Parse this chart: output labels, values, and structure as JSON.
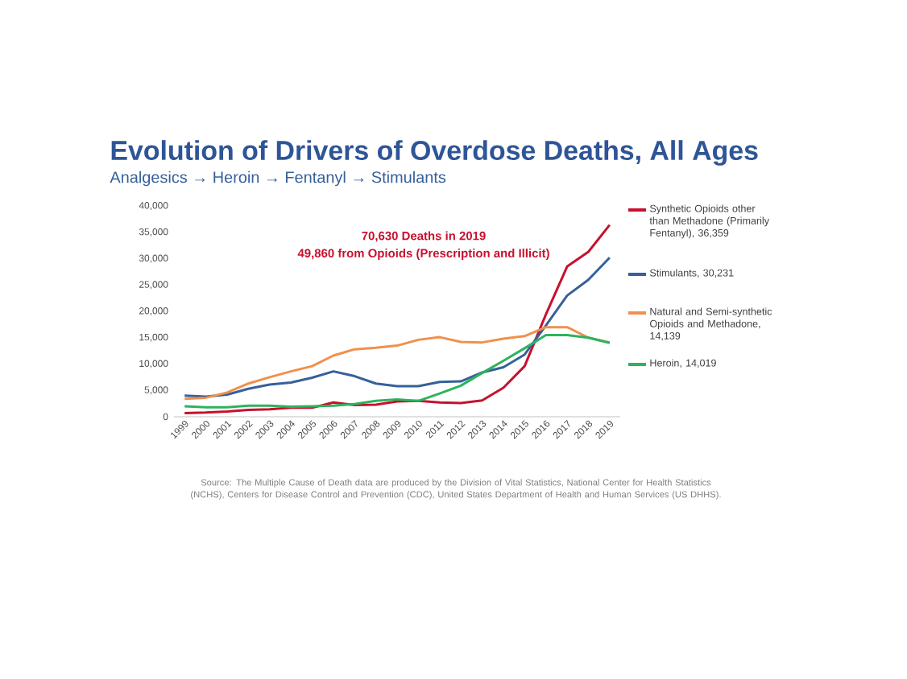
{
  "chart_data": {
    "type": "line",
    "title": "Evolution of Drivers of Overdose Deaths, All Ages",
    "subtitle": "Analgesics → Heroin → Fentanyl → Stimulants",
    "categories": [
      "1999",
      "2000",
      "2001",
      "2002",
      "2003",
      "2004",
      "2005",
      "2006",
      "2007",
      "2008",
      "2009",
      "2010",
      "2011",
      "2012",
      "2013",
      "2014",
      "2015",
      "2016",
      "2017",
      "2018",
      "2019"
    ],
    "series": [
      {
        "name": "Synthetic Opioids other than Methadone (Primarily Fentanyl), 36,359",
        "color": "#c8102e",
        "values": [
          700,
          800,
          1000,
          1300,
          1400,
          1700,
          1700,
          2700,
          2200,
          2300,
          2900,
          3000,
          2700,
          2600,
          3100,
          5500,
          9600,
          19400,
          28500,
          31300,
          36400
        ]
      },
      {
        "name": "Stimulants, 30,231",
        "color": "#36609a",
        "values": [
          4000,
          3800,
          4200,
          5300,
          6100,
          6500,
          7400,
          8600,
          7700,
          6300,
          5800,
          5800,
          6600,
          6700,
          8400,
          9400,
          11800,
          17300,
          23000,
          26000,
          30200
        ]
      },
      {
        "name": "Natural and Semi-synthetic Opioids and Methadone, 14,139",
        "color": "#f0904c",
        "values": [
          3400,
          3600,
          4600,
          6300,
          7500,
          8600,
          9600,
          11600,
          12800,
          13100,
          13500,
          14600,
          15100,
          14200,
          14100,
          14800,
          15300,
          17000,
          17000,
          15000,
          14100
        ]
      },
      {
        "name": "Heroin, 14,019",
        "color": "#2db35d",
        "values": [
          2000,
          1800,
          1800,
          2100,
          2100,
          1900,
          2000,
          2100,
          2400,
          3000,
          3300,
          3000,
          4400,
          5900,
          8300,
          10600,
          13000,
          15500,
          15500,
          15000,
          14000
        ]
      }
    ],
    "ylim": [
      0,
      40000
    ],
    "yticks": [
      0,
      {
        "value": 5000,
        "label": "5,000"
      },
      {
        "value": 10000,
        "label": "10,000"
      },
      {
        "value": 15000,
        "label": "15,000"
      },
      {
        "value": 20000,
        "label": "20,000"
      },
      {
        "value": 25000,
        "label": "25,000"
      },
      {
        "value": 30000,
        "label": "30,000"
      },
      {
        "value": 35000,
        "label": "35,000"
      },
      {
        "value": 40000,
        "label": "40,000"
      }
    ],
    "legend": "right",
    "grid": false,
    "marker": "none",
    "line_style": "solid",
    "annotations": [
      "70,630 Deaths in 2019",
      "49,860 from Opioids (Prescription and Illicit)",
      "Source: The Multiple Cause of Death data are produced by the Division of Vital Statistics, National Center for Health Statistics (NCHS), Centers for Disease Control and Prevention (CDC), United States Department of Health and Human Services (US DHHS)."
    ]
  }
}
